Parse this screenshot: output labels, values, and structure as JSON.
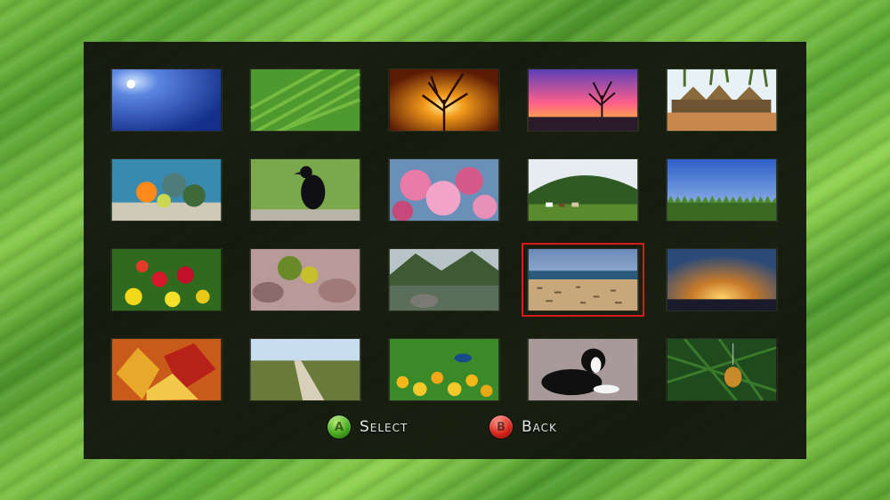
{
  "tiles": [
    {
      "icon": "blue-sky-sun-image"
    },
    {
      "icon": "green-leaf-image"
    },
    {
      "icon": "tree-sunset-image"
    },
    {
      "icon": "pink-sky-tree-image"
    },
    {
      "icon": "tropical-huts-image"
    },
    {
      "icon": "coral-reef-image"
    },
    {
      "icon": "crow-bird-image"
    },
    {
      "icon": "pink-blossoms-image"
    },
    {
      "icon": "green-hill-cows-image"
    },
    {
      "icon": "blue-sky-field-image"
    },
    {
      "icon": "primrose-flowers-image"
    },
    {
      "icon": "rock-garden-image"
    },
    {
      "icon": "mountain-lake-image"
    },
    {
      "icon": "beach-shore-image"
    },
    {
      "icon": "golden-sky-sunset-image"
    },
    {
      "icon": "autumn-leaves-image"
    },
    {
      "icon": "country-path-image"
    },
    {
      "icon": "peacock-flowers-image"
    },
    {
      "icon": "puppy-dog-image"
    },
    {
      "icon": "christmas-ornament-image"
    }
  ],
  "selected_index": 13,
  "footer": {
    "select": {
      "button": "A",
      "label": "Select",
      "color": "#45a81e"
    },
    "back": {
      "button": "B",
      "label": "Back",
      "color": "#d8241a"
    }
  },
  "colors": {
    "selection_border": "#d81a1a",
    "panel": "#10120c"
  }
}
